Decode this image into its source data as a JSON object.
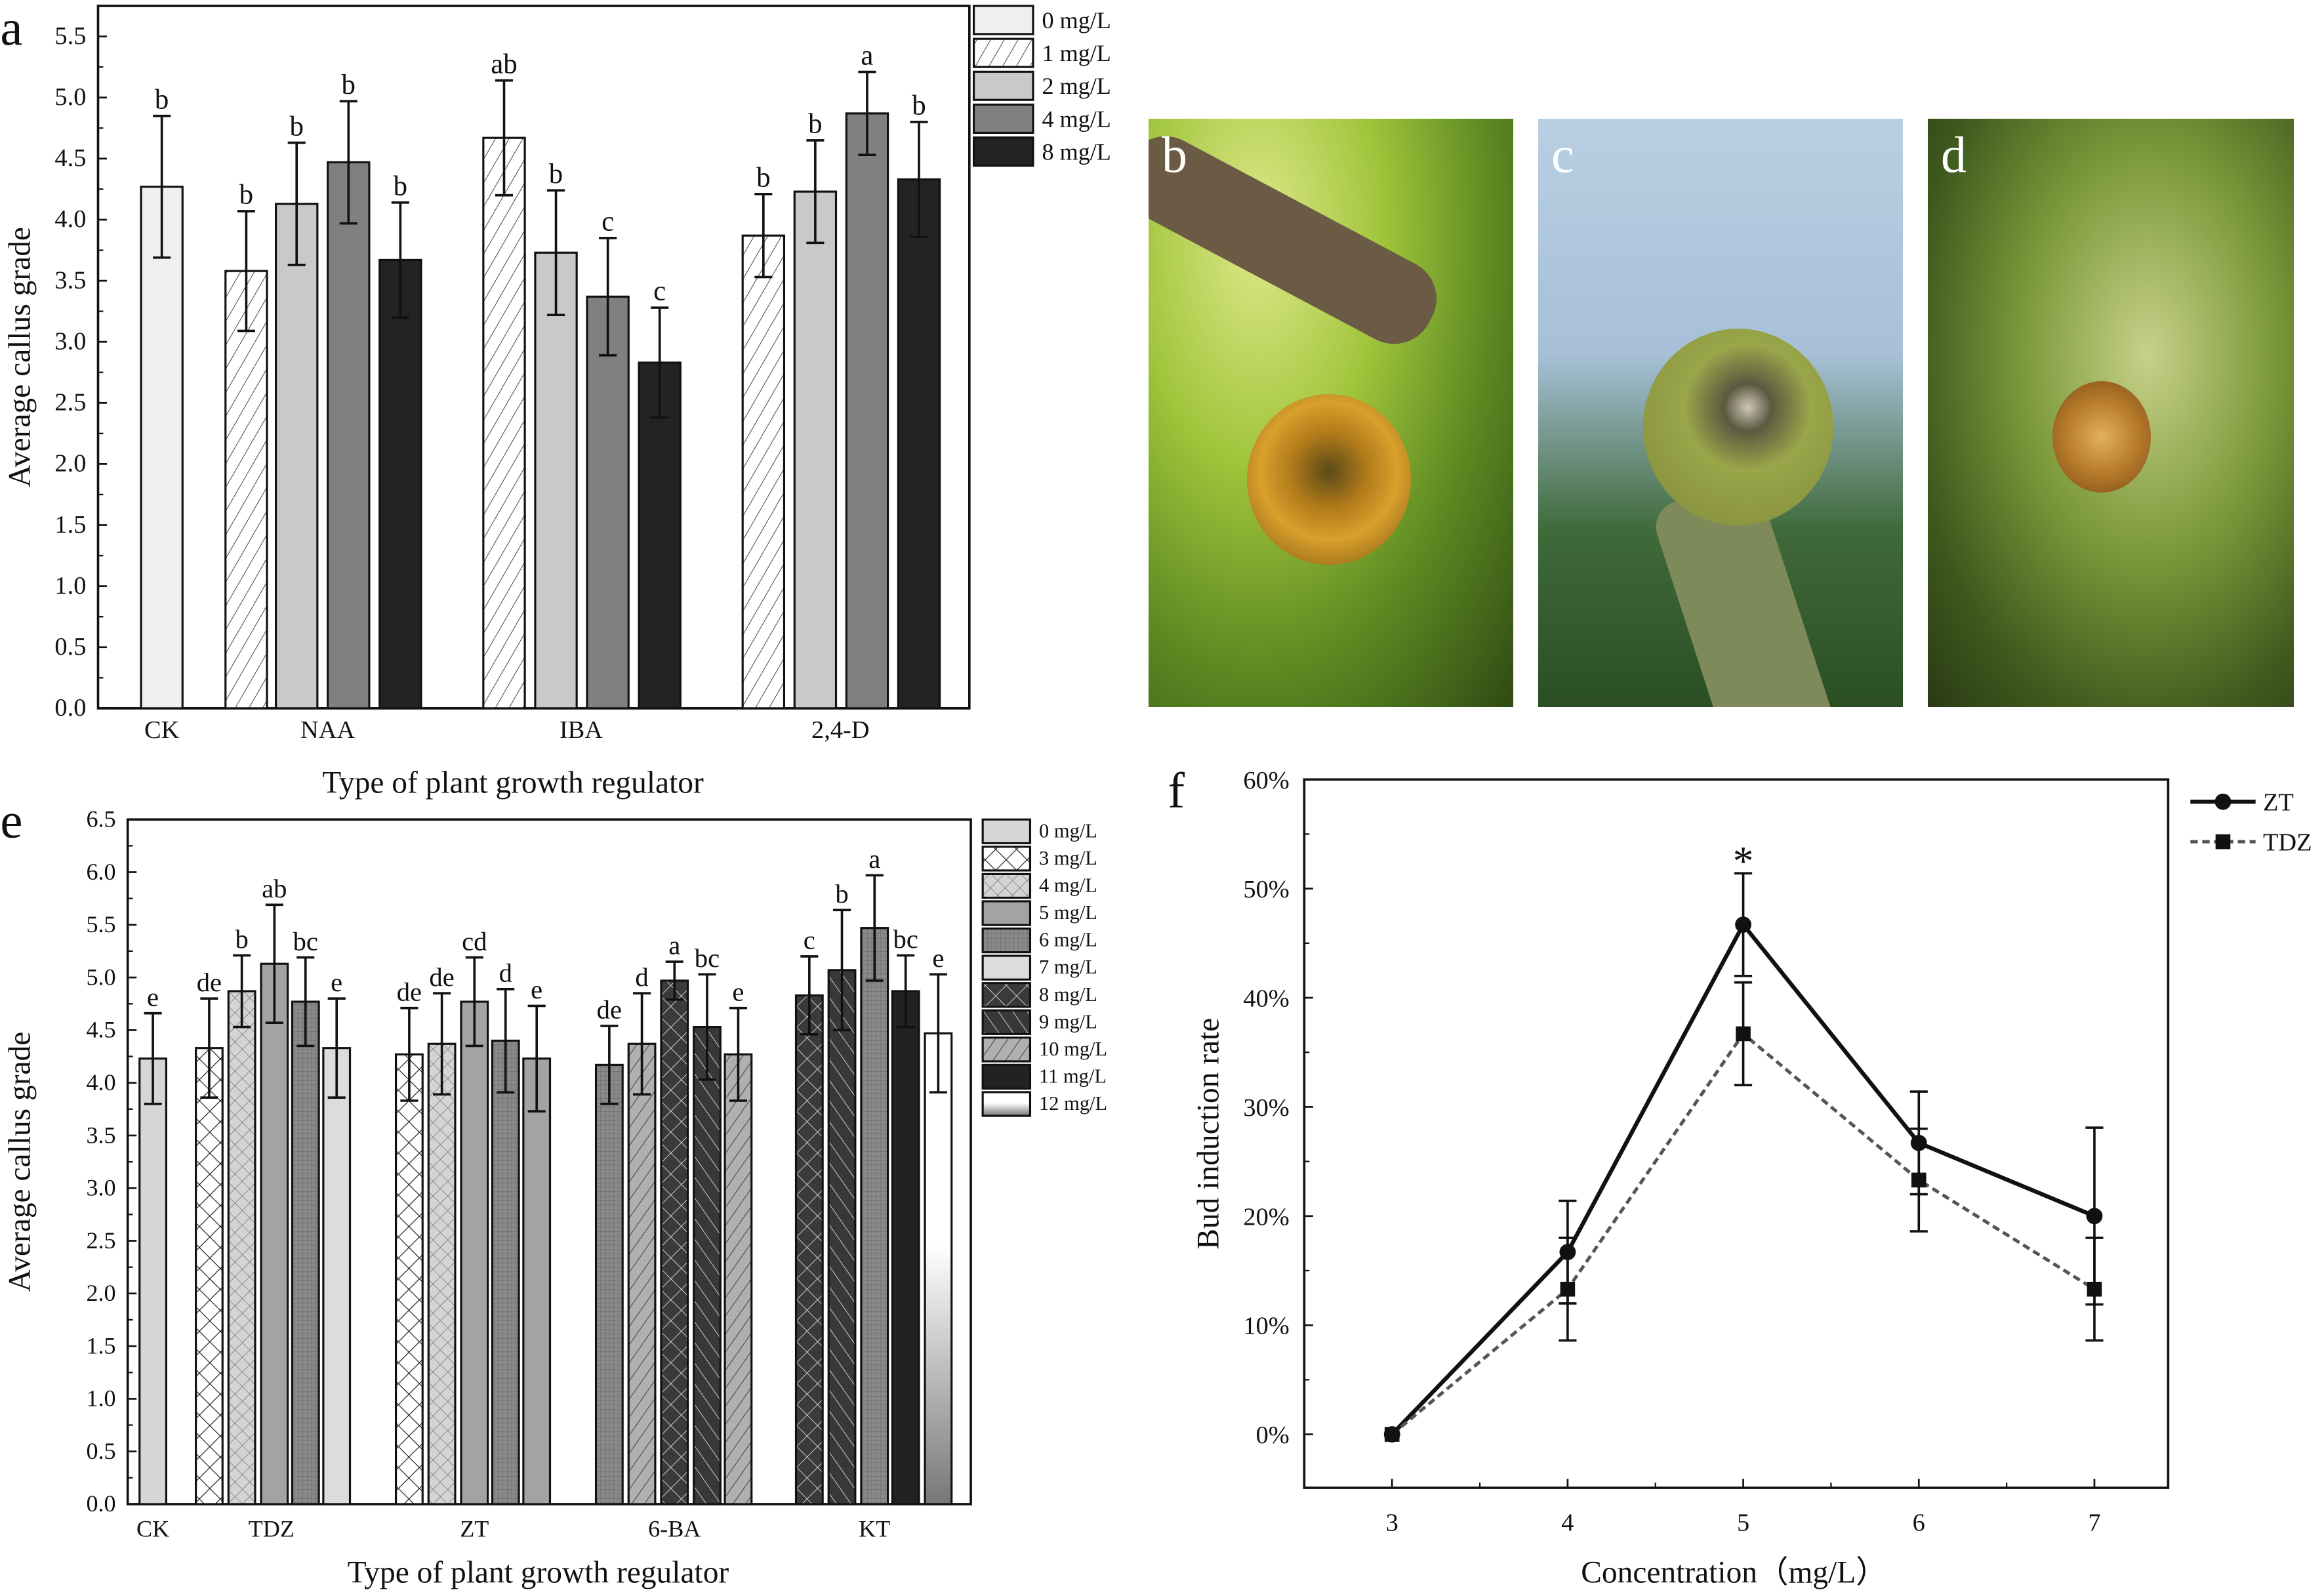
{
  "panels": {
    "a": {
      "label": "a"
    },
    "b": {
      "label": "b"
    },
    "c": {
      "label": "c"
    },
    "d": {
      "label": "d"
    },
    "e": {
      "label": "e"
    },
    "f": {
      "label": "f"
    }
  },
  "chart_data": [
    {
      "id": "a",
      "type": "bar",
      "title": "",
      "xlabel": "Type of plant growth regulator",
      "ylabel": "Average callus grade",
      "ylim": [
        0,
        5.75
      ],
      "yticks": [
        "0.0",
        "0.5",
        "1.0",
        "1.5",
        "2.0",
        "2.5",
        "3.0",
        "3.5",
        "4.0",
        "4.5",
        "5.0",
        "5.5"
      ],
      "legend_position": "right",
      "legend": [
        {
          "name": "0 mg/L",
          "style": "a0"
        },
        {
          "name": "1 mg/L",
          "style": "a1"
        },
        {
          "name": "2 mg/L",
          "style": "a2"
        },
        {
          "name": "4 mg/L",
          "style": "a4"
        },
        {
          "name": "8 mg/L",
          "style": "a8"
        }
      ],
      "categories": [
        "CK",
        "NAA",
        "IBA",
        "2,4-D"
      ],
      "groups": [
        {
          "category": "CK",
          "bars": [
            {
              "series": "0 mg/L",
              "style": "a0",
              "value": 4.27,
              "error": 0.58,
              "letter": "b"
            }
          ]
        },
        {
          "category": "NAA",
          "bars": [
            {
              "series": "1 mg/L",
              "style": "a1",
              "value": 3.58,
              "error": 0.49,
              "letter": "b"
            },
            {
              "series": "2 mg/L",
              "style": "a2",
              "value": 4.13,
              "error": 0.5,
              "letter": "b"
            },
            {
              "series": "4 mg/L",
              "style": "a4",
              "value": 4.47,
              "error": 0.5,
              "letter": "b"
            },
            {
              "series": "8 mg/L",
              "style": "a8",
              "value": 3.67,
              "error": 0.47,
              "letter": "b"
            }
          ]
        },
        {
          "category": "IBA",
          "bars": [
            {
              "series": "1 mg/L",
              "style": "a1",
              "value": 4.67,
              "error": 0.47,
              "letter": "ab"
            },
            {
              "series": "2 mg/L",
              "style": "a2",
              "value": 3.73,
              "error": 0.51,
              "letter": "b"
            },
            {
              "series": "4 mg/L",
              "style": "a4",
              "value": 3.37,
              "error": 0.48,
              "letter": "c"
            },
            {
              "series": "8 mg/L",
              "style": "a8",
              "value": 2.83,
              "error": 0.45,
              "letter": "c"
            }
          ]
        },
        {
          "category": "2,4-D",
          "bars": [
            {
              "series": "1 mg/L",
              "style": "a1",
              "value": 3.87,
              "error": 0.34,
              "letter": "b"
            },
            {
              "series": "2 mg/L",
              "style": "a2",
              "value": 4.23,
              "error": 0.42,
              "letter": "b"
            },
            {
              "series": "4 mg/L",
              "style": "a4",
              "value": 4.87,
              "error": 0.34,
              "letter": "a"
            },
            {
              "series": "8 mg/L",
              "style": "a8",
              "value": 4.33,
              "error": 0.47,
              "letter": "b"
            }
          ]
        }
      ]
    },
    {
      "id": "e",
      "type": "bar",
      "title": "",
      "xlabel": "Type of plant growth regulator",
      "ylabel": "Average callus grade",
      "ylim": [
        0,
        6.5
      ],
      "yticks": [
        "0.0",
        "0.5",
        "1.0",
        "1.5",
        "2.0",
        "2.5",
        "3.0",
        "3.5",
        "4.0",
        "4.5",
        "5.0",
        "5.5",
        "6.0",
        "6.5"
      ],
      "legend_position": "right",
      "legend": [
        {
          "name": "0 mg/L",
          "style": "e0"
        },
        {
          "name": "3 mg/L",
          "style": "e3"
        },
        {
          "name": "4 mg/L",
          "style": "e4"
        },
        {
          "name": "5 mg/L",
          "style": "e5"
        },
        {
          "name": "6 mg/L",
          "style": "e6"
        },
        {
          "name": "7 mg/L",
          "style": "e7"
        },
        {
          "name": "8 mg/L",
          "style": "e8"
        },
        {
          "name": "9 mg/L",
          "style": "e9"
        },
        {
          "name": "10 mg/L",
          "style": "e10"
        },
        {
          "name": "11 mg/L",
          "style": "e11"
        },
        {
          "name": "12 mg/L",
          "style": "e12"
        }
      ],
      "categories": [
        "CK",
        "TDZ",
        "ZT",
        "6-BA",
        "KT"
      ],
      "groups": [
        {
          "category": "CK",
          "bars": [
            {
              "style": "e0",
              "value": 4.23,
              "error": 0.43,
              "letter": "e"
            }
          ]
        },
        {
          "category": "TDZ",
          "bars": [
            {
              "style": "e3",
              "value": 4.33,
              "error": 0.47,
              "letter": "de"
            },
            {
              "style": "e4",
              "value": 4.87,
              "error": 0.34,
              "letter": "b"
            },
            {
              "style": "e5",
              "value": 5.13,
              "error": 0.56,
              "letter": "ab"
            },
            {
              "style": "e6",
              "value": 4.77,
              "error": 0.42,
              "letter": "bc"
            },
            {
              "style": "e7",
              "value": 4.33,
              "error": 0.47,
              "letter": "e"
            }
          ]
        },
        {
          "category": "ZT",
          "bars": [
            {
              "style": "e3",
              "value": 4.27,
              "error": 0.44,
              "letter": "de"
            },
            {
              "style": "e4",
              "value": 4.37,
              "error": 0.48,
              "letter": "de"
            },
            {
              "style": "e5",
              "value": 4.77,
              "error": 0.42,
              "letter": "cd"
            },
            {
              "style": "e6",
              "value": 4.4,
              "error": 0.49,
              "letter": "d"
            },
            {
              "style": "e5",
              "value": 4.23,
              "error": 0.5,
              "letter": "e"
            }
          ]
        },
        {
          "category": "6-BA",
          "bars": [
            {
              "style": "e6",
              "value": 4.17,
              "error": 0.37,
              "letter": "de"
            },
            {
              "style": "e10",
              "value": 4.37,
              "error": 0.48,
              "letter": "d"
            },
            {
              "style": "e8",
              "value": 4.97,
              "error": 0.18,
              "letter": "a"
            },
            {
              "style": "e9",
              "value": 4.53,
              "error": 0.5,
              "letter": "bc"
            },
            {
              "style": "e10",
              "value": 4.27,
              "error": 0.44,
              "letter": "e"
            }
          ]
        },
        {
          "category": "KT",
          "bars": [
            {
              "style": "e8",
              "value": 4.83,
              "error": 0.37,
              "letter": "c"
            },
            {
              "style": "e9",
              "value": 5.07,
              "error": 0.57,
              "letter": "b"
            },
            {
              "style": "e6",
              "value": 5.47,
              "error": 0.5,
              "letter": "a"
            },
            {
              "style": "e11",
              "value": 4.87,
              "error": 0.34,
              "letter": "bc"
            },
            {
              "style": "e12",
              "value": 4.47,
              "error": 0.56,
              "letter": "e"
            }
          ]
        }
      ]
    },
    {
      "id": "f",
      "type": "line",
      "title": "",
      "xlabel": "Concentration（mg/L）",
      "ylabel": "Bud induction rate",
      "xlim": [
        2.5,
        7.42
      ],
      "ylim": [
        -4.9,
        60
      ],
      "x": [
        3,
        4,
        5,
        6,
        7
      ],
      "xticks": [
        "3",
        "4",
        "5",
        "6",
        "7"
      ],
      "yticks": [
        "0%",
        "10%",
        "20%",
        "30%",
        "40%",
        "50%",
        "60%"
      ],
      "legend_position": "right",
      "annotations": [
        {
          "x": 5,
          "text": "*"
        }
      ],
      "series": [
        {
          "name": "ZT",
          "marker": "circle",
          "line": "solid",
          "values": [
            0,
            16.7,
            46.7,
            26.7,
            20.0
          ],
          "errors": [
            0,
            4.7,
            4.7,
            4.7,
            8.1
          ]
        },
        {
          "name": "TDZ",
          "marker": "square",
          "line": "dashed",
          "values": [
            0,
            13.3,
            36.7,
            23.3,
            13.3
          ],
          "errors": [
            0,
            4.7,
            4.7,
            4.7,
            4.7
          ]
        }
      ]
    }
  ]
}
